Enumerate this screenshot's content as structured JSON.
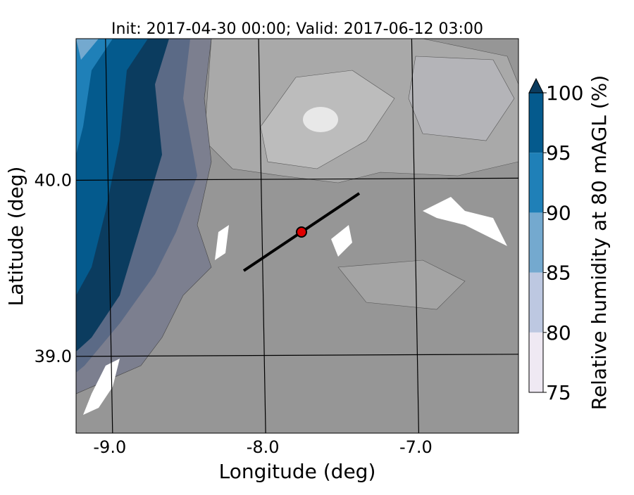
{
  "map": {
    "title": "Init: 2017-04-30 00:00; Valid: 2017-06-12 03:00",
    "x_label": "Longitude (deg)",
    "y_label": "Latitude (deg)",
    "xlim": [
      -9.22,
      -6.33
    ],
    "ylim": [
      38.56,
      40.8
    ],
    "xticks": [
      {
        "value": -9,
        "label": "-9.0"
      },
      {
        "value": -8,
        "label": "-8.0"
      },
      {
        "value": -7,
        "label": "-7.0"
      }
    ],
    "yticks": [
      {
        "value": 39,
        "label": "39.0"
      },
      {
        "value": 40,
        "label": "40.0"
      }
    ],
    "colorbar": {
      "label": "Relative humidity at 80 mAGL (%)",
      "ticks": [
        75,
        80,
        85,
        90,
        95,
        100
      ],
      "colors": [
        "#efe9f3",
        "#bdc8e1",
        "#74a9cf",
        "#1f80b8",
        "#045a8d"
      ],
      "extend_color": "#0b3c5f"
    }
  }
}
